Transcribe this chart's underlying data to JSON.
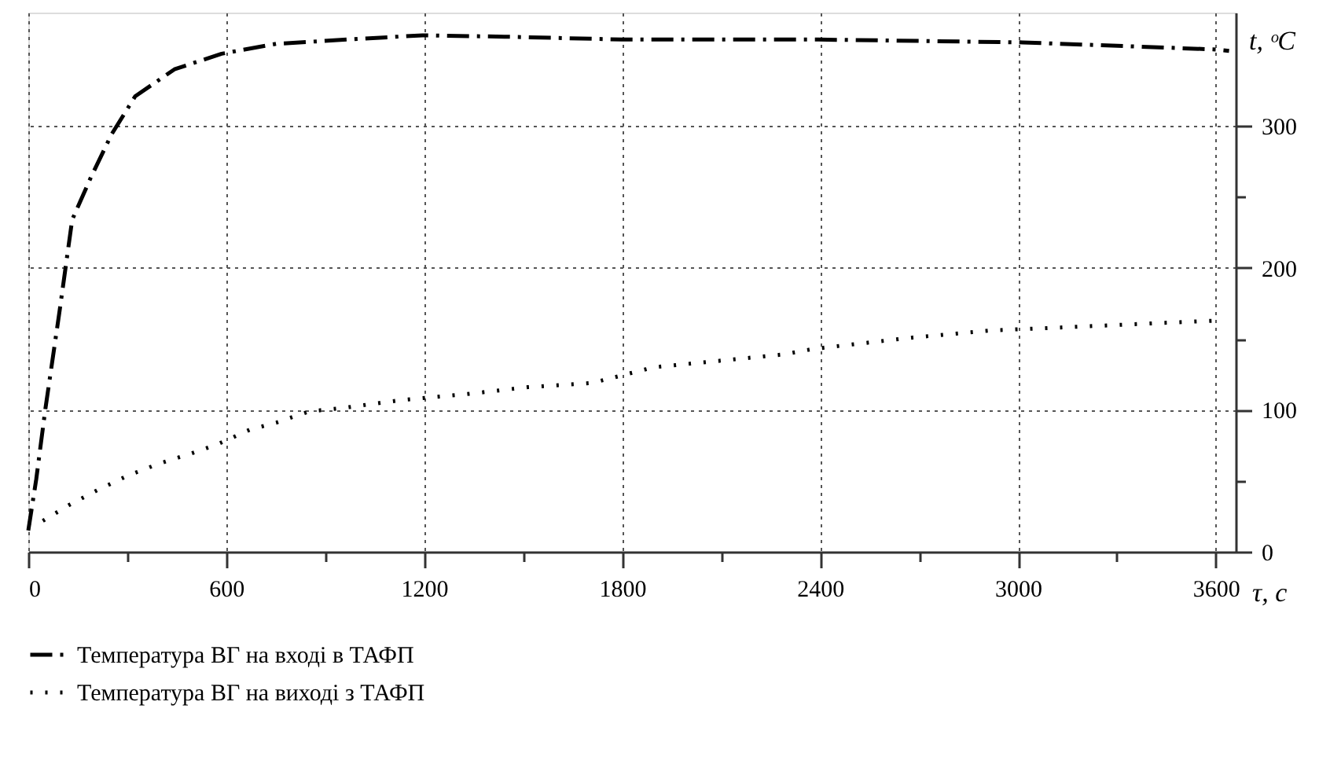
{
  "chart_data": {
    "type": "line",
    "xlabel": "τ, c",
    "ylabel": "t, ᵒC",
    "xlim": [
      0,
      3660
    ],
    "ylim": [
      0,
      380
    ],
    "xticks": [
      0,
      {
        "value": 300,
        "label": null
      },
      600,
      {
        "value": 900,
        "label": null
      },
      1200,
      {
        "value": 1500,
        "label": null
      },
      1800,
      {
        "value": 2100,
        "label": null
      },
      2400,
      {
        "value": 2700,
        "label": null
      },
      3000,
      {
        "value": 3300,
        "label": null
      },
      3600
    ],
    "yticks": [
      0,
      {
        "value": 50,
        "label": null
      },
      100,
      {
        "value": 150,
        "label": null
      },
      200,
      {
        "value": 250,
        "label": null
      },
      300
    ],
    "grid": true,
    "legend": "bottom left",
    "marker": "none",
    "series": [
      {
        "name": "Температура ВГ на вході в ТАФП",
        "color": "#000000",
        "line_style": "dashed",
        "x": [
          0,
          24,
          52,
          95,
          133,
          190,
          252,
          324,
          443,
          586,
          752,
          967,
          1195,
          1443,
          1800,
          2395,
          3014,
          3600,
          3640
        ],
        "values": [
          15,
          51,
          101,
          170,
          234,
          264,
          294,
          321,
          340,
          351,
          358,
          361,
          364,
          363,
          361,
          361,
          359,
          354,
          353
        ]
      },
      {
        "name": "Температура ВГ на виході з ТАФП",
        "color": "#000000",
        "line_style": "dotted",
        "x": [
          0,
          38,
          124,
          214,
          305,
          395,
          490,
          576,
          671,
          752,
          852,
          943,
          1133,
          1324,
          1514,
          1710,
          1895,
          2286,
          2381,
          2681,
          2919,
          3124,
          3410,
          3610
        ],
        "values": [
          20,
          21,
          33,
          44,
          54,
          62,
          69,
          76,
          86,
          91,
          99,
          101,
          107,
          111,
          116,
          119,
          130,
          139,
          143,
          151,
          156,
          158,
          161,
          163
        ]
      }
    ]
  }
}
